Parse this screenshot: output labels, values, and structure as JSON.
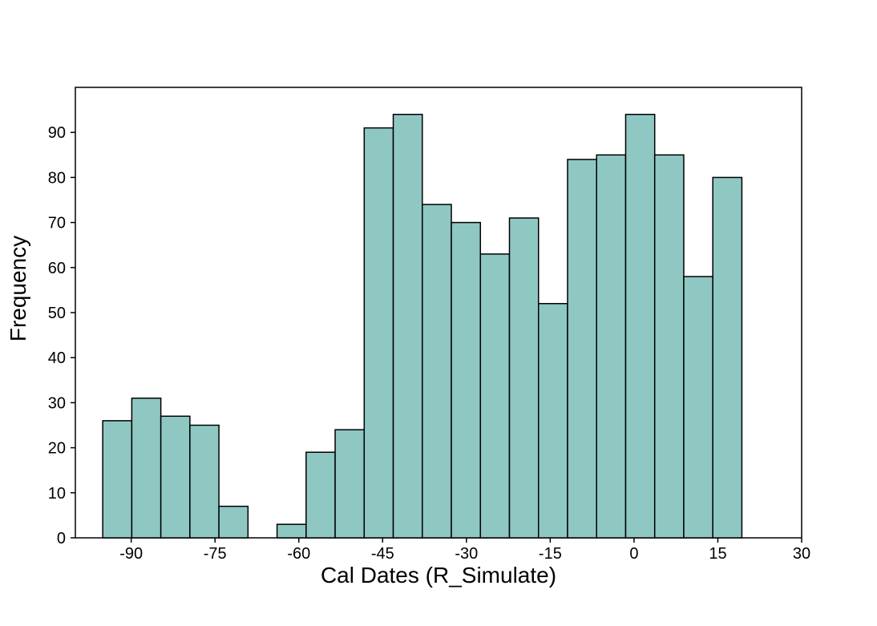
{
  "colors": {
    "bar_fill": "#8fc7c3",
    "bar_stroke": "#000000",
    "axis": "#000000",
    "background": "#ffffff"
  },
  "chart_data": {
    "type": "bar",
    "title": "",
    "xlabel": "Cal Dates (R_Simulate)",
    "ylabel": "Frequency",
    "grid": false,
    "legend": "none",
    "xlim": [
      -100,
      30
    ],
    "ylim": [
      0,
      100
    ],
    "bin_width": 5.2,
    "bins": [
      {
        "start": -95.1,
        "end": -89.9,
        "count": 26
      },
      {
        "start": -89.9,
        "end": -84.7,
        "count": 31
      },
      {
        "start": -84.7,
        "end": -79.5,
        "count": 27
      },
      {
        "start": -79.5,
        "end": -74.3,
        "count": 25
      },
      {
        "start": -74.3,
        "end": -69.1,
        "count": 7
      },
      {
        "start": -63.9,
        "end": -58.7,
        "count": 3
      },
      {
        "start": -58.7,
        "end": -53.5,
        "count": 19
      },
      {
        "start": -53.5,
        "end": -48.3,
        "count": 24
      },
      {
        "start": -48.3,
        "end": -43.1,
        "count": 91
      },
      {
        "start": -43.1,
        "end": -37.9,
        "count": 94
      },
      {
        "start": -37.9,
        "end": -32.7,
        "count": 74
      },
      {
        "start": -32.7,
        "end": -27.5,
        "count": 70
      },
      {
        "start": -27.5,
        "end": -22.3,
        "count": 63
      },
      {
        "start": -22.3,
        "end": -17.1,
        "count": 71
      },
      {
        "start": -17.1,
        "end": -11.9,
        "count": 52
      },
      {
        "start": -11.9,
        "end": -6.7,
        "count": 84
      },
      {
        "start": -6.7,
        "end": -1.5,
        "count": 85
      },
      {
        "start": -1.5,
        "end": 3.7,
        "count": 94
      },
      {
        "start": 3.7,
        "end": 8.9,
        "count": 85
      },
      {
        "start": 8.9,
        "end": 14.1,
        "count": 58
      },
      {
        "start": 14.1,
        "end": 19.3,
        "count": 80
      }
    ],
    "x_ticks": [
      -90,
      -75,
      -60,
      -45,
      -30,
      -15,
      0,
      15,
      30
    ],
    "x_tick_labels": [
      "-90",
      "-75",
      "-60",
      "-45",
      "-30",
      "-15",
      "0",
      "15",
      "30"
    ],
    "y_ticks": [
      0,
      10,
      20,
      30,
      40,
      50,
      60,
      70,
      80,
      90
    ],
    "y_tick_labels": [
      "0",
      "10",
      "20",
      "30",
      "40",
      "50",
      "60",
      "70",
      "80",
      "90"
    ]
  }
}
